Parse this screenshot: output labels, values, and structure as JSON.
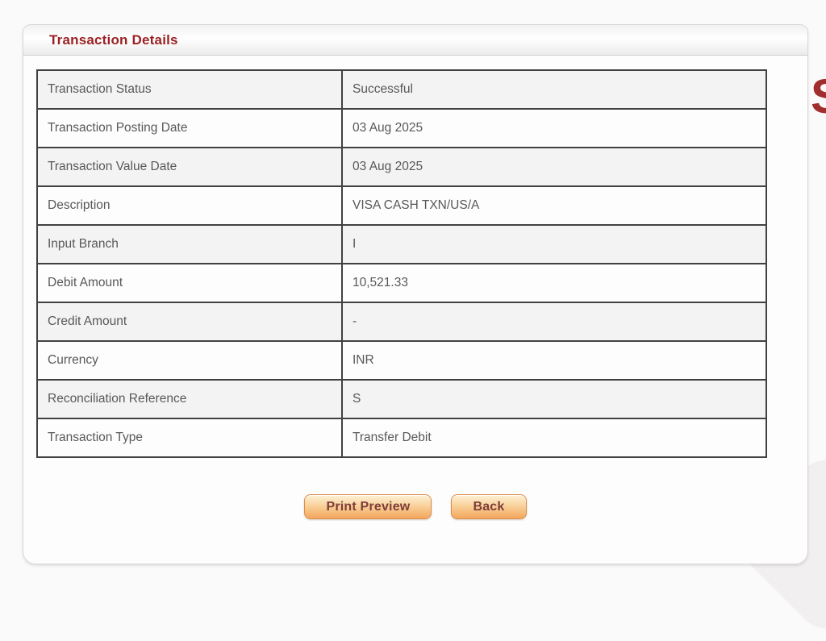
{
  "panel": {
    "title": "Transaction Details"
  },
  "table": {
    "rows": [
      {
        "label": "Transaction Status",
        "value": "Successful"
      },
      {
        "label": "Transaction Posting Date",
        "value": "03 Aug 2025"
      },
      {
        "label": "Transaction Value Date",
        "value": "03 Aug 2025"
      },
      {
        "label": "Description",
        "value": "VISA CASH TXN/US/A"
      },
      {
        "label": "Input Branch",
        "value": "I"
      },
      {
        "label": "Debit Amount",
        "value": "10,521.33"
      },
      {
        "label": "Credit Amount",
        "value": "-"
      },
      {
        "label": "Currency",
        "value": "INR"
      },
      {
        "label": "Reconciliation Reference",
        "value": "S"
      },
      {
        "label": "Transaction Type",
        "value": "Transfer Debit"
      }
    ]
  },
  "buttons": {
    "print_preview": "Print Preview",
    "back": "Back"
  },
  "watermark": {
    "edge_letter": "S"
  },
  "colors": {
    "heading_maroon": "#9b2124",
    "button_orange": "#f3a65c",
    "button_text": "#7f3c38",
    "table_border": "#414141",
    "row_alt_gray": "#f3f3f3",
    "watermark_red": "#a12e2e"
  }
}
